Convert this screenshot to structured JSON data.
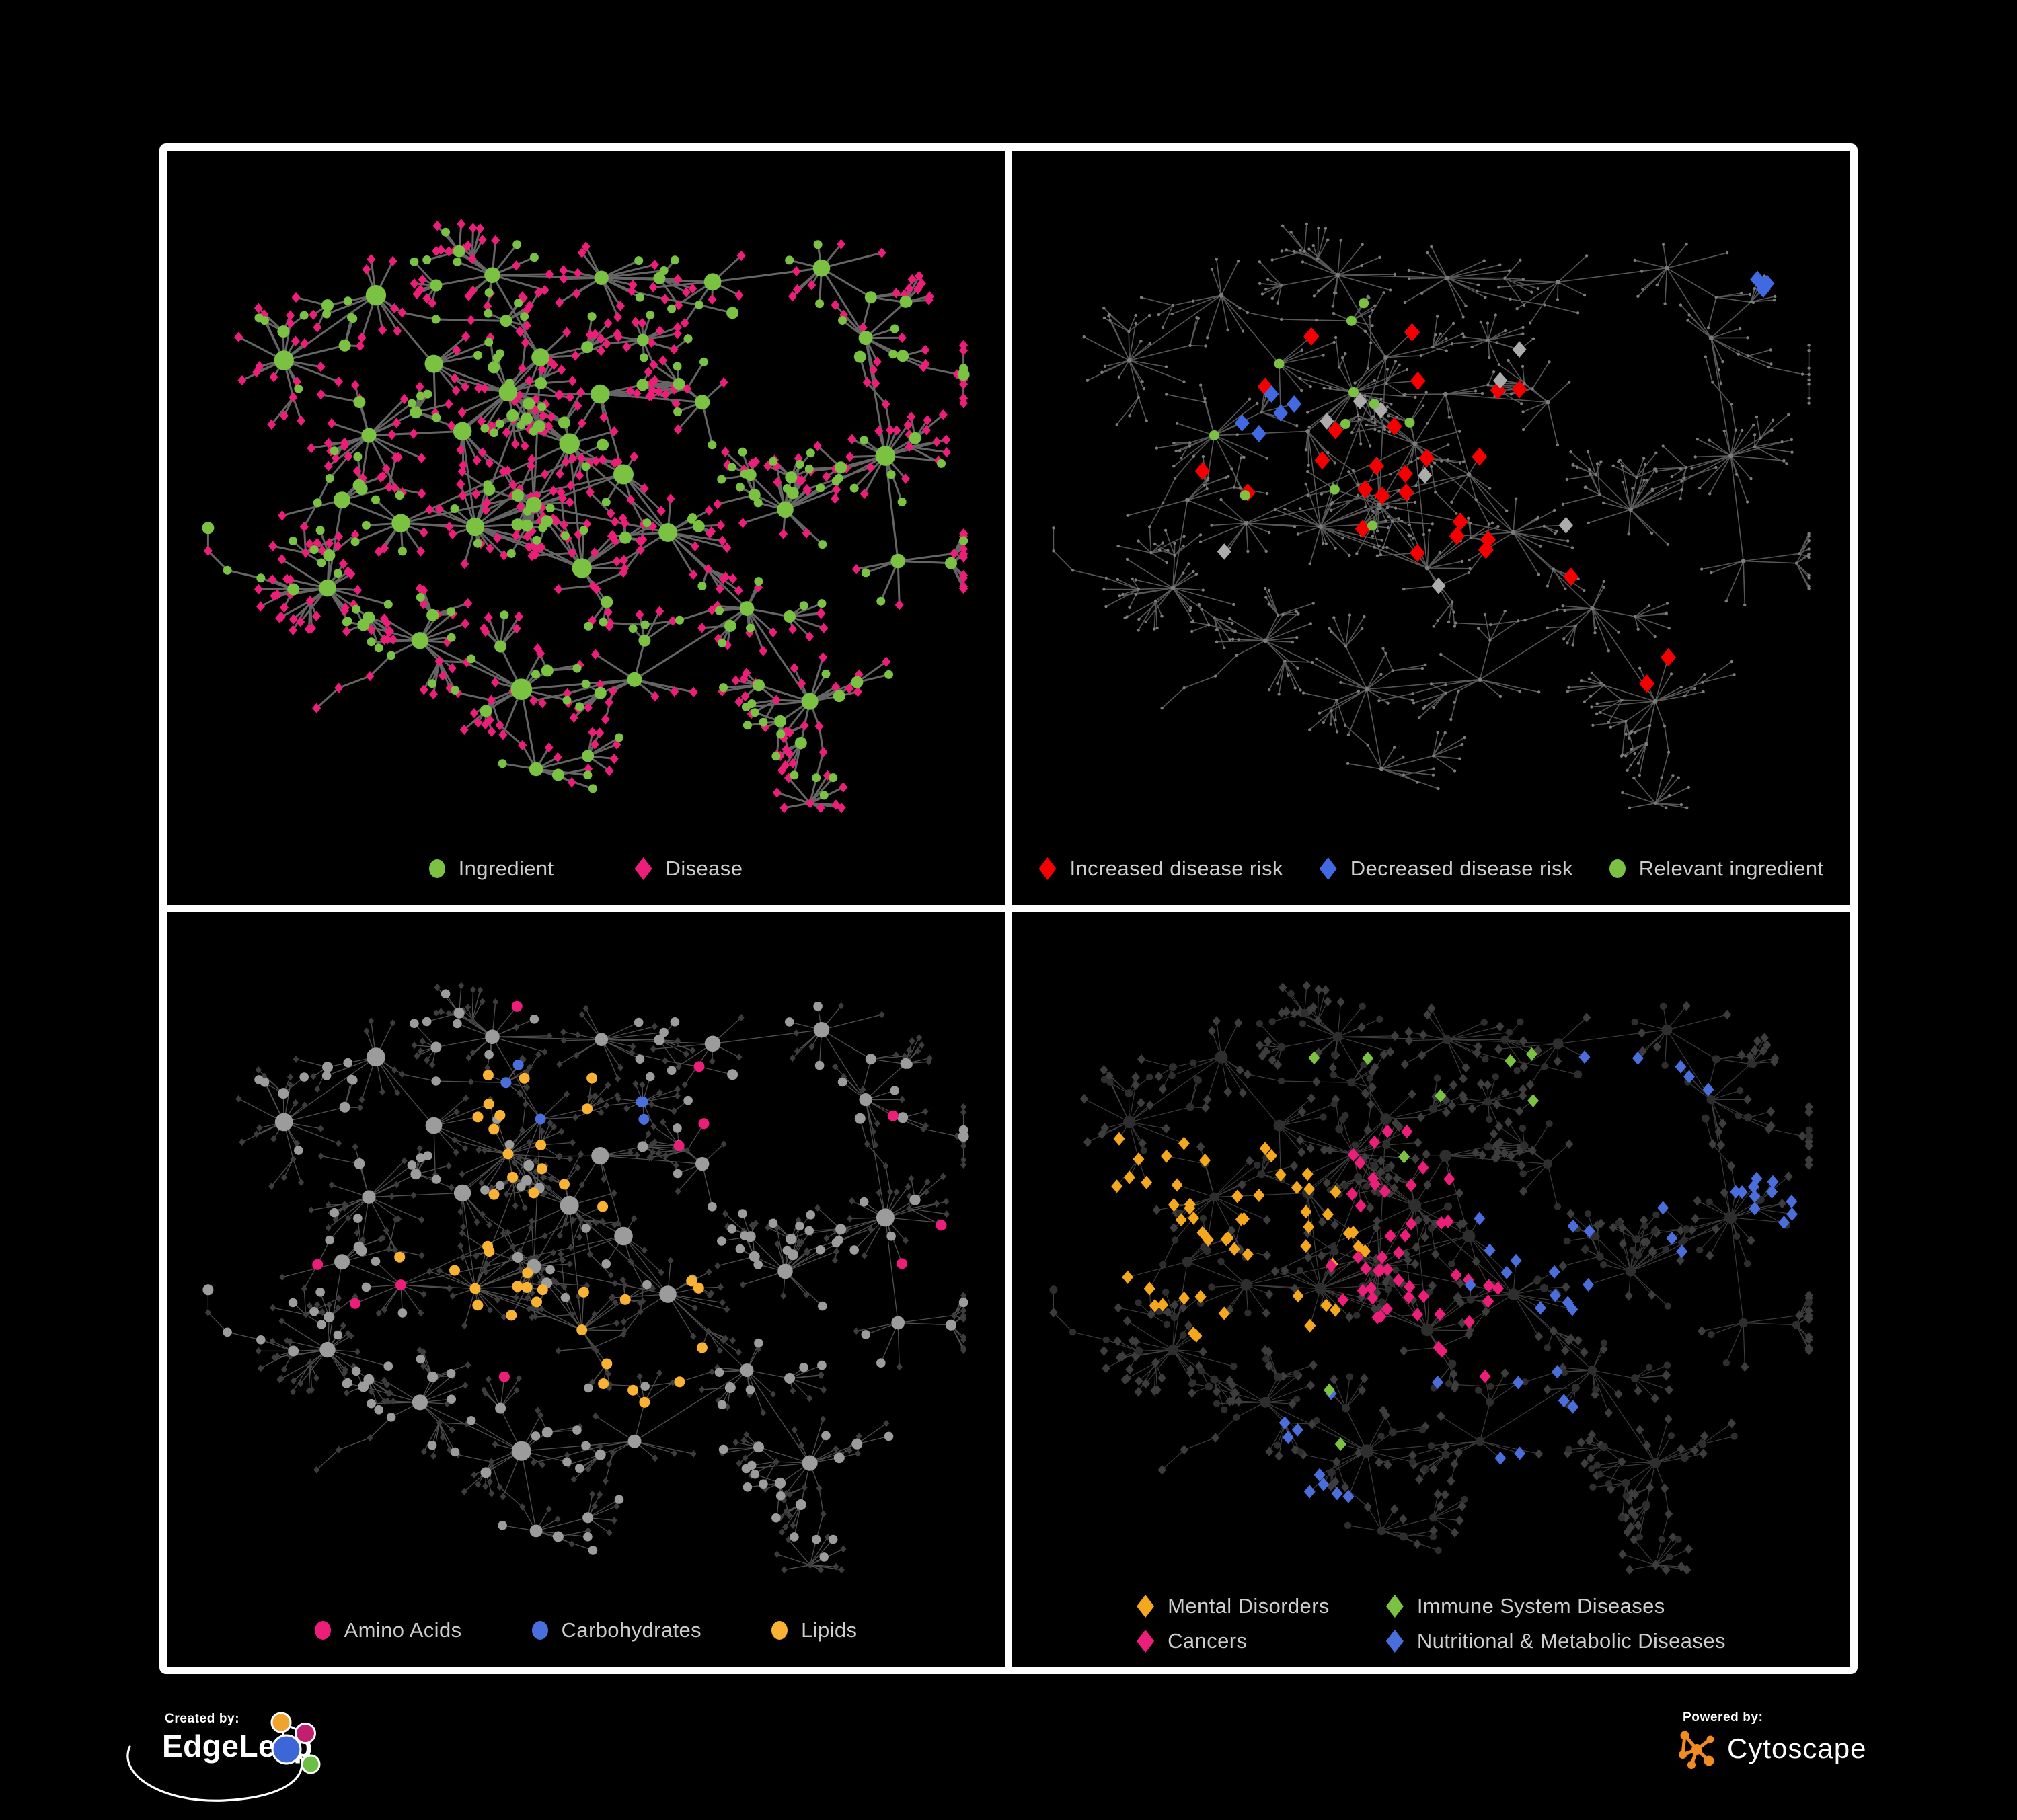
{
  "footer": {
    "created_by_label": "Created by:",
    "edgeleap_name": "EdgeLeap",
    "powered_by_label": "Powered by:",
    "cytoscape_name": "Cytoscape"
  },
  "colors": {
    "background": "#000000",
    "frame": "#FFFFFF",
    "legend_text": "#CDCDCD",
    "green": "#7CC242",
    "pink": "#EC1E79",
    "red": "#F40000",
    "blue": "#4169E1",
    "blue_soft": "#4A6FDC",
    "yellow": "#F9B233",
    "amber": "#F5A81E",
    "gray_highlight": "#ACACAC",
    "edgeleap_orange": "#F0A32E",
    "edgeleap_magenta": "#C21F6E",
    "edgeleap_blue": "#3D67D6",
    "edgeleap_green": "#6DBE45",
    "cytoscape_orange": "#F28B20"
  },
  "network": {
    "seed": 11
  },
  "panels": [
    {
      "name": "ingredient-disease-network",
      "legend": [
        {
          "label": "Ingredient",
          "shape": "circle",
          "color": "#7CC242"
        },
        {
          "label": "Disease",
          "shape": "diamond",
          "color": "#EC1E79"
        }
      ],
      "style": {
        "edge": {
          "color": "#6A6A6A",
          "width": 3,
          "opacity": 0.95
        },
        "ingredient": {
          "color": "#7CC242",
          "r_hub": 12,
          "r_sub": 9,
          "r_leaf": 6.5
        },
        "disease": {
          "color": "#EC1E79",
          "size": 6.5
        },
        "highlights": []
      }
    },
    {
      "name": "disease-risk-network",
      "legend": [
        {
          "label": "Increased disease risk",
          "shape": "diamond",
          "color": "#F40000"
        },
        {
          "label": "Decreased disease risk",
          "shape": "diamond",
          "color": "#4169E1"
        },
        {
          "label": "Relevant ingredient",
          "shape": "circle",
          "color": "#7CC242"
        }
      ],
      "style": {
        "edge": {
          "color": "#5C5C5C",
          "width": 1.6,
          "opacity": 0.95
        },
        "base": {
          "color": "#7C7C7C",
          "r_hub": 3.4,
          "r_leaf": 2.2
        },
        "highlights": [
          {
            "shape": "diamond",
            "color": "#F40000",
            "size": 11.5,
            "target": "d",
            "focus": [
              [
                0.42,
                0.33
              ],
              [
                0.52,
                0.45
              ],
              [
                0.33,
                0.42
              ],
              [
                0.6,
                0.52
              ],
              [
                0.72,
                0.78
              ]
            ],
            "radius": 0.15,
            "min_radius": 0,
            "prob": 0.12,
            "max": 34
          },
          {
            "shape": "diamond",
            "color": "#4169E1",
            "size": 11,
            "target": "d",
            "focus": [
              [
                0.26,
                0.34
              ],
              [
                0.88,
                0.2
              ]
            ],
            "radius": 0.07,
            "min_radius": 0,
            "prob": 0.5,
            "max": 12
          },
          {
            "shape": "diamond",
            "color": "#ACACAC",
            "size": 10.5,
            "target": "d",
            "focus": [
              [
                0.4,
                0.42
              ],
              [
                0.75,
                0.62
              ]
            ],
            "radius": 0.28,
            "min_radius": 0,
            "prob": 0.03,
            "max": 9
          },
          {
            "shape": "circle",
            "color": "#7CC242",
            "size": 7.5,
            "target": "i",
            "focus": [
              [
                0.4,
                0.34
              ],
              [
                0.52,
                0.46
              ],
              [
                0.3,
                0.4
              ]
            ],
            "radius": 0.14,
            "min_radius": 0,
            "prob": 0.18,
            "max": 24
          }
        ]
      }
    },
    {
      "name": "nutrient-class-network",
      "legend": [
        {
          "label": "Amino Acids",
          "shape": "circle",
          "color": "#EC1E79"
        },
        {
          "label": "Carbohydrates",
          "shape": "circle",
          "color": "#4A6FDC"
        },
        {
          "label": "Lipids",
          "shape": "circle",
          "color": "#F9B233"
        }
      ],
      "style": {
        "edge": {
          "color": "#A0A0A0",
          "width": 1.3,
          "opacity": 0.5
        },
        "ingredient": {
          "color": "#9C9C9C",
          "r_hub": 11,
          "r_sub": 8,
          "r_leaf": 6.8
        },
        "disease": {
          "color": "#3D3D3D",
          "size": 4.6
        },
        "highlights": [
          {
            "shape": "circle",
            "color": "#F9B233",
            "size": 8,
            "target": "i",
            "focus": [
              [
                0.44,
                0.28
              ],
              [
                0.5,
                0.44
              ],
              [
                0.58,
                0.62
              ],
              [
                0.36,
                0.5
              ]
            ],
            "radius": 0.11,
            "min_radius": 0,
            "prob": 0.5,
            "max": 55
          },
          {
            "shape": "circle",
            "color": "#4A6FDC",
            "size": 8,
            "target": "i",
            "focus": [
              [
                0.46,
                0.24
              ],
              [
                0.52,
                0.3
              ]
            ],
            "radius": 0.07,
            "min_radius": 0,
            "prob": 0.55,
            "max": 13
          },
          {
            "shape": "circle",
            "color": "#EC1E79",
            "size": 8,
            "target": "i",
            "focus": [
              [
                0.5,
                0.5
              ]
            ],
            "radius": 0.58,
            "min_radius": 0.2,
            "prob": 0.05,
            "max": 16
          }
        ]
      }
    },
    {
      "name": "disease-class-network",
      "legend": [
        {
          "label": "Mental Disorders",
          "shape": "diamond",
          "color": "#F5A81E"
        },
        {
          "label": "Immune System Diseases",
          "shape": "diamond",
          "color": "#7CC242"
        },
        {
          "label": "Cancers",
          "shape": "diamond",
          "color": "#EC1E79"
        },
        {
          "label": "Nutritional & Metabolic Diseases",
          "shape": "diamond",
          "color": "#4A6FDC"
        }
      ],
      "style": {
        "edge": {
          "color": "#9A9A9A",
          "width": 1.15,
          "opacity": 0.4
        },
        "ingredient": {
          "color": "#2E2E2E",
          "r_hub": 7.5,
          "r_sub": 6,
          "r_leaf": 5.2
        },
        "disease": {
          "color": "#3D3D3D",
          "size": 6.2
        },
        "highlights": [
          {
            "shape": "diamond",
            "color": "#F5A81E",
            "size": 8.5,
            "target": "d",
            "focus": [
              [
                0.2,
                0.42
              ],
              [
                0.27,
                0.5
              ]
            ],
            "radius": 0.15,
            "min_radius": 0,
            "prob": 0.6,
            "max": 100
          },
          {
            "shape": "diamond",
            "color": "#EC1E79",
            "size": 8.5,
            "target": "d",
            "focus": [
              [
                0.44,
                0.5
              ],
              [
                0.52,
                0.6
              ],
              [
                0.47,
                0.4
              ]
            ],
            "radius": 0.1,
            "min_radius": 0,
            "prob": 0.45,
            "max": 60
          },
          {
            "shape": "diamond",
            "color": "#4A6FDC",
            "size": 8.5,
            "target": "d",
            "focus": [
              [
                0.63,
                0.5
              ],
              [
                0.8,
                0.28
              ],
              [
                0.88,
                0.42
              ],
              [
                0.6,
                0.72
              ],
              [
                0.34,
                0.8
              ],
              [
                0.76,
                0.12
              ]
            ],
            "radius": 0.1,
            "min_radius": 0,
            "prob": 0.45,
            "max": 80
          },
          {
            "shape": "diamond",
            "color": "#7CC242",
            "size": 8.5,
            "target": "d",
            "focus": [
              [
                0.45,
                0.45
              ]
            ],
            "radius": 0.5,
            "min_radius": 0,
            "prob": 0.035,
            "max": 9
          }
        ]
      }
    }
  ]
}
